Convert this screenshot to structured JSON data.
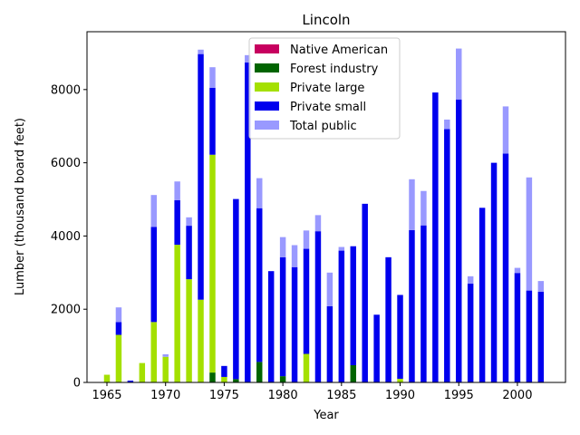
{
  "chart_data": {
    "type": "bar",
    "stacked": true,
    "title": "Lincoln",
    "xlabel": "Year",
    "ylabel": "Lumber (thousand board feet)",
    "xlim": [
      1963.3,
      2004.1
    ],
    "ylim": [
      0,
      9580
    ],
    "xticks": [
      1965,
      1970,
      1975,
      1980,
      1985,
      1990,
      1995,
      2000
    ],
    "yticks": [
      0,
      2000,
      4000,
      6000,
      8000
    ],
    "legend_position": "top-center",
    "years": [
      1965,
      1966,
      1967,
      1968,
      1969,
      1970,
      1971,
      1972,
      1973,
      1974,
      1975,
      1976,
      1977,
      1978,
      1979,
      1980,
      1981,
      1982,
      1983,
      1984,
      1985,
      1986,
      1987,
      1988,
      1989,
      1990,
      1991,
      1992,
      1993,
      1994,
      1995,
      1996,
      1997,
      1998,
      1999,
      2000,
      2001,
      2002
    ],
    "series": [
      {
        "name": "Native American",
        "color": "#c7005f",
        "values": [
          0,
          0,
          0,
          0,
          0,
          0,
          0,
          0,
          0,
          0,
          0,
          0,
          0,
          0,
          0,
          0,
          0,
          0,
          0,
          0,
          0,
          0,
          0,
          0,
          0,
          0,
          0,
          0,
          0,
          0,
          0,
          0,
          0,
          0,
          0,
          0,
          0,
          0
        ]
      },
      {
        "name": "Forest industry",
        "color": "#006400",
        "values": [
          0,
          0,
          0,
          0,
          0,
          0,
          0,
          0,
          0,
          270,
          0,
          90,
          0,
          560,
          0,
          170,
          0,
          0,
          0,
          0,
          0,
          470,
          0,
          0,
          0,
          0,
          0,
          0,
          0,
          0,
          0,
          0,
          0,
          0,
          0,
          0,
          0,
          0
        ]
      },
      {
        "name": "Private large",
        "color": "#a4e000",
        "values": [
          210,
          1300,
          0,
          530,
          1650,
          700,
          3760,
          2820,
          2260,
          5950,
          150,
          0,
          0,
          0,
          0,
          0,
          0,
          780,
          0,
          0,
          0,
          0,
          0,
          0,
          0,
          100,
          0,
          0,
          0,
          0,
          0,
          0,
          0,
          0,
          0,
          0,
          0,
          0
        ]
      },
      {
        "name": "Private small",
        "color": "#0000ee",
        "values": [
          0,
          350,
          50,
          0,
          2600,
          0,
          1220,
          1460,
          6710,
          1830,
          300,
          4920,
          8740,
          4200,
          3040,
          3250,
          3150,
          2870,
          4130,
          2080,
          3600,
          3250,
          4880,
          1850,
          3420,
          2290,
          4160,
          4290,
          7920,
          6920,
          7730,
          2700,
          4770,
          6000,
          6250,
          2990,
          2510,
          2480
        ]
      },
      {
        "name": "Total public",
        "color": "#9999ff",
        "values": [
          0,
          400,
          0,
          0,
          870,
          70,
          510,
          230,
          120,
          560,
          0,
          0,
          200,
          820,
          0,
          550,
          600,
          500,
          440,
          920,
          100,
          0,
          0,
          0,
          0,
          0,
          1390,
          940,
          0,
          260,
          1390,
          200,
          0,
          0,
          1290,
          140,
          3090,
          290
        ]
      }
    ]
  }
}
